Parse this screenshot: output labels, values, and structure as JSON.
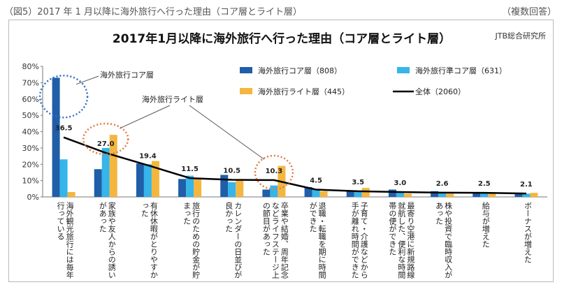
{
  "header": {
    "left": "（図5）2017 年 1 月以降に海外旅行へ行った理由（コア層とライト層）",
    "right": "（複数回答）"
  },
  "source": "JTB総合研究所",
  "colors": {
    "core": "#1f5ea8",
    "quasi": "#35b5ea",
    "light": "#f4b63f",
    "total": "#000000",
    "annot": "#e07a3f",
    "annot_blue": "#2f6fc4"
  },
  "annotations": {
    "core": "海外旅行コア層",
    "light": "海外旅行ライト層"
  },
  "chart_data": {
    "type": "bar",
    "title": "2017年1月以降に海外旅行へ行った理由（コア層とライト層）",
    "ylim": [
      0,
      80
    ],
    "yticks": [
      "0%",
      "10%",
      "20%",
      "30%",
      "40%",
      "50%",
      "60%",
      "70%",
      "80%"
    ],
    "grid": false,
    "legend_position": "top-right",
    "categories": [
      "海外観光旅行には毎年行っている",
      "家族や友人からの誘いがあった",
      "有休休暇がとりやすかった",
      "旅行のための貯金が貯まった",
      "カレンダーの日並びが良かった",
      "卒業や結婚、周年記念などライフステージ上の節目があった",
      "退職・転職を期に時間ができた",
      "子育て・介護などから手が離れ時間ができた",
      "最寄り空港に新規路線就航した、便利な時間帯の便ができた",
      "株や投資で臨時収入があった",
      "給与が増えた",
      "ボーナスが増えた"
    ],
    "series": [
      {
        "name": "海外旅行コア層（808）",
        "type": "bar",
        "values": [
          73,
          17,
          20.5,
          11,
          13.5,
          4.5,
          6,
          3.5,
          4.5,
          3.5,
          2.5,
          2.5
        ]
      },
      {
        "name": "海外旅行準コア層（631）",
        "type": "bar",
        "values": [
          23,
          30,
          20,
          13,
          9,
          7,
          4.5,
          3.5,
          3,
          2.5,
          2.5,
          2
        ]
      },
      {
        "name": "海外旅行ライト層（445）",
        "type": "bar",
        "values": [
          3,
          38,
          22,
          11,
          10,
          19,
          3.5,
          5.5,
          2,
          2,
          2.5,
          2.5
        ]
      },
      {
        "name": "全体（2060）",
        "type": "line",
        "values": [
          36.5,
          27.0,
          19.4,
          11.5,
          10.5,
          10.3,
          4.5,
          3.5,
          3.0,
          2.6,
          2.5,
          2.1
        ]
      }
    ],
    "data_labels": [
      "36.5",
      "27.0",
      "19.4",
      "11.5",
      "10.5",
      "10.3",
      "4.5",
      "3.5",
      "3.0",
      "2.6",
      "2.5",
      "2.1"
    ]
  }
}
